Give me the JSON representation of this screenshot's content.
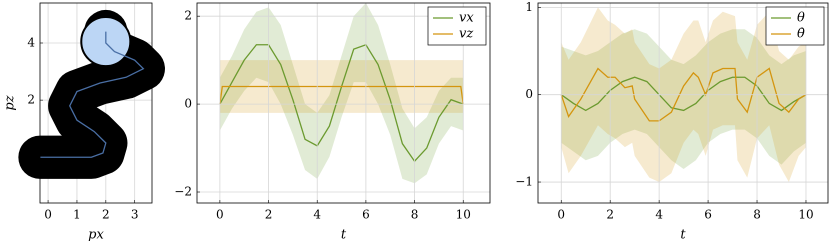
{
  "chart_data": [
    {
      "type": "line",
      "x_label": "px",
      "y_label": "pz",
      "xlim": [
        -0.28,
        3.6
      ],
      "ylim": [
        -1.6,
        5.4
      ],
      "xticks": [
        0,
        1,
        2,
        3
      ],
      "yticks": [
        2,
        4
      ],
      "grid": true,
      "footprint": {
        "color": "#000000",
        "radius": 0.75
      },
      "goal": {
        "x": 2.0,
        "y": 4.05,
        "radius": 0.85,
        "color": "#bcd6f5"
      },
      "series": [
        {
          "color": "#4a6fa5",
          "x": [
            -0.28,
            0.5,
            1.5,
            1.9,
            2.0,
            1.6,
            1.0,
            0.75,
            1.0,
            1.8,
            2.7,
            3.3,
            3.0,
            2.3,
            2.0,
            2.0
          ],
          "values": [
            0,
            0,
            0,
            0.15,
            0.5,
            0.9,
            1.3,
            1.8,
            2.3,
            2.6,
            2.8,
            3.1,
            3.4,
            3.7,
            4.0,
            4.4
          ]
        }
      ]
    },
    {
      "type": "line",
      "x_label": "t",
      "xlim": [
        -0.94,
        11.1
      ],
      "ylim": [
        -2.25,
        2.3
      ],
      "xticks": [
        0,
        2,
        4,
        6,
        8,
        10
      ],
      "yticks": [
        {
          "value": -2,
          "label": "−2"
        },
        0,
        2
      ],
      "grid": true,
      "legend": "top-right",
      "band_opacity": 0.2,
      "series": [
        {
          "name": "vx",
          "color": "#6b9a2f",
          "x": [
            0,
            0.5,
            1,
            1.5,
            2,
            2.5,
            3,
            3.5,
            4,
            4.5,
            5,
            5.5,
            6,
            6.5,
            7,
            7.5,
            8,
            8.5,
            9,
            9.5,
            10
          ],
          "values": [
            0,
            0.5,
            1.0,
            1.35,
            1.35,
            0.9,
            0.1,
            -0.8,
            -0.95,
            -0.5,
            0.4,
            1.25,
            1.35,
            0.9,
            0.1,
            -0.9,
            -1.3,
            -1.0,
            -0.3,
            0.1,
            0
          ],
          "upper": [
            0.6,
            1.1,
            1.7,
            2.1,
            2.2,
            1.8,
            0.9,
            0.0,
            -0.2,
            0.2,
            1.1,
            2.0,
            2.3,
            1.8,
            0.9,
            -0.1,
            -0.55,
            -0.3,
            0.3,
            0.6,
            0.6
          ],
          "lower": [
            -0.6,
            -0.1,
            0.3,
            0.6,
            0.5,
            0.0,
            -0.7,
            -1.5,
            -1.7,
            -1.2,
            -0.3,
            0.5,
            0.5,
            0.0,
            -0.7,
            -1.7,
            -1.8,
            -1.6,
            -0.9,
            -0.5,
            -0.6
          ]
        },
        {
          "name": "vz",
          "color": "#d4950f",
          "x": [
            0,
            0.1,
            9.9,
            10
          ],
          "values": [
            0,
            0.4,
            0.4,
            0
          ],
          "upper": [
            1.0,
            1.0,
            1.0,
            1.0
          ],
          "lower": [
            -0.2,
            -0.2,
            -0.2,
            -0.2
          ]
        }
      ]
    },
    {
      "type": "line",
      "x_label": "t",
      "xlim": [
        -0.95,
        10.9
      ],
      "ylim": [
        -1.24,
        1.05
      ],
      "xticks": [
        0,
        2,
        4,
        6,
        8,
        10
      ],
      "yticks": [
        {
          "value": -1,
          "label": "−1"
        },
        0,
        1
      ],
      "grid": true,
      "legend": "top-right",
      "band_opacity": 0.2,
      "series": [
        {
          "name": "θ",
          "color": "#6b9a2f",
          "x": [
            0,
            0.5,
            1,
            1.5,
            2,
            2.5,
            3,
            3.5,
            4,
            4.5,
            5,
            5.5,
            6,
            6.5,
            7,
            7.5,
            8,
            8.5,
            9,
            9.5,
            10
          ],
          "values": [
            0,
            -0.1,
            -0.18,
            -0.1,
            0.05,
            0.15,
            0.2,
            0.15,
            0.0,
            -0.15,
            -0.18,
            -0.1,
            0.05,
            0.15,
            0.2,
            0.2,
            0.1,
            -0.1,
            -0.18,
            -0.08,
            0
          ],
          "upper": [
            0.55,
            0.5,
            0.45,
            0.5,
            0.6,
            0.7,
            0.75,
            0.7,
            0.55,
            0.4,
            0.35,
            0.45,
            0.6,
            0.7,
            0.75,
            0.75,
            0.65,
            0.45,
            0.35,
            0.45,
            0.5
          ],
          "lower": [
            -0.55,
            -0.65,
            -0.75,
            -0.7,
            -0.55,
            -0.45,
            -0.4,
            -0.45,
            -0.6,
            -0.75,
            -0.85,
            -0.75,
            -0.55,
            -0.45,
            -0.4,
            -0.4,
            -0.5,
            -0.7,
            -0.8,
            -0.65,
            -0.55
          ]
        },
        {
          "name": "θ̇",
          "color": "#d4950f",
          "x": [
            0,
            0.3,
            0.8,
            1.5,
            1.9,
            2.2,
            2.6,
            2.9,
            3.0,
            3.6,
            4.0,
            4.5,
            5.0,
            5.4,
            5.6,
            5.9,
            6.2,
            6.6,
            7.1,
            7.2,
            7.6,
            8.0,
            8.5,
            8.9,
            9.3,
            9.7,
            10
          ],
          "values": [
            0,
            -0.25,
            -0.05,
            0.3,
            0.2,
            0.2,
            0.08,
            0.1,
            -0.05,
            -0.3,
            -0.3,
            -0.2,
            0.1,
            0.25,
            0.2,
            0.0,
            0.25,
            0.3,
            0.3,
            -0.05,
            -0.2,
            0.2,
            0.3,
            -0.1,
            -0.2,
            -0.05,
            0
          ],
          "upper": [
            0.6,
            0.4,
            0.6,
            1.0,
            0.85,
            0.8,
            0.7,
            0.75,
            0.6,
            0.35,
            0.3,
            0.4,
            0.7,
            0.85,
            0.85,
            0.6,
            0.85,
            0.95,
            0.9,
            0.6,
            0.4,
            0.8,
            0.95,
            0.5,
            0.4,
            0.55,
            0.6
          ],
          "lower": [
            -0.6,
            -0.9,
            -0.7,
            -0.35,
            -0.45,
            -0.5,
            -0.6,
            -0.55,
            -0.7,
            -0.95,
            -1.0,
            -0.9,
            -0.55,
            -0.4,
            -0.45,
            -0.7,
            -0.4,
            -0.35,
            -0.35,
            -0.75,
            -0.95,
            -0.5,
            -0.35,
            -0.8,
            -1.0,
            -0.7,
            -0.6
          ]
        }
      ]
    }
  ]
}
